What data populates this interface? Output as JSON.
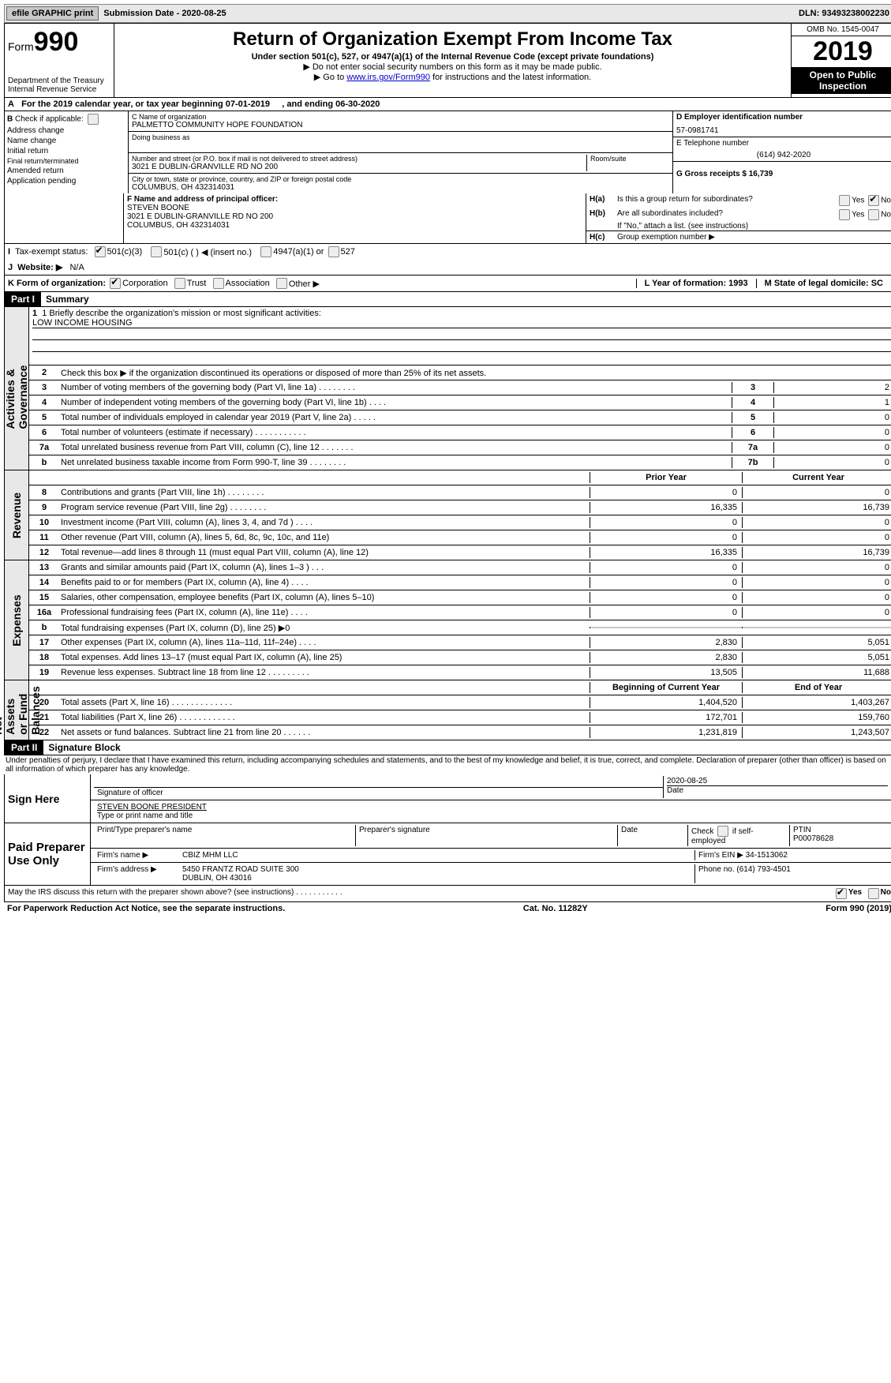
{
  "topbar": {
    "efile": "efile GRAPHIC print",
    "sub_label": "Submission Date - 2020-08-25",
    "dln": "DLN: 93493238002230"
  },
  "header": {
    "form": "Form",
    "form_num": "990",
    "dept1": "Department of the Treasury",
    "dept2": "Internal Revenue Service",
    "title": "Return of Organization Exempt From Income Tax",
    "subtitle": "Under section 501(c), 527, or 4947(a)(1) of the Internal Revenue Code (except private foundations)",
    "note1": "▶ Do not enter social security numbers on this form as it may be made public.",
    "note2_pre": "▶ Go to ",
    "note2_link": "www.irs.gov/Form990",
    "note2_post": " for instructions and the latest information.",
    "omb": "OMB No. 1545-0047",
    "year": "2019",
    "open": "Open to Public Inspection"
  },
  "lineA": {
    "prefix": "A",
    "text": "For the 2019 calendar year, or tax year beginning 07-01-2019",
    "mid": ", and ending 06-30-2020"
  },
  "sectionB": {
    "label": "B",
    "check": "Check if applicable:",
    "items": [
      "Address change",
      "Name change",
      "Initial return",
      "Final return/terminated",
      "Amended return",
      "Application pending"
    ]
  },
  "sectionC": {
    "c_lbl": "C Name of organization",
    "c_val": "PALMETTO COMMUNITY HOPE FOUNDATION",
    "dba_lbl": "Doing business as",
    "addr_lbl": "Number and street (or P.O. box if mail is not delivered to street address)",
    "room_lbl": "Room/suite",
    "addr_val": "3021 E DUBLIN-GRANVILLE RD NO 200",
    "city_lbl": "City or town, state or province, country, and ZIP or foreign postal code",
    "city_val": "COLUMBUS, OH   432314031",
    "f_lbl": "F Name and address of principal officer:",
    "f_name": "STEVEN BOONE",
    "f_addr1": "3021 E DUBLIN-GRANVILLE RD NO 200",
    "f_addr2": "COLUMBUS, OH   432314031"
  },
  "sectionD": {
    "d_lbl": "D Employer identification number",
    "d_val": "57-0981741",
    "e_lbl": "E Telephone number",
    "e_val": "(614) 942-2020",
    "g_lbl": "G Gross receipts $ 16,739"
  },
  "sectionH": {
    "ha_lbl": "Is this a group return for subordinates?",
    "hb_lbl": "Are all subordinates included?",
    "hb_note": "If \"No,\" attach a list. (see instructions)",
    "hc_lbl": "Group exemption number ▶",
    "yes": "Yes",
    "no": "No"
  },
  "rowI": {
    "lbl": "I",
    "text": "Tax-exempt status:",
    "opt1": "501(c)(3)",
    "opt2": "501(c) (   ) ◀ (insert no.)",
    "opt3": "4947(a)(1) or",
    "opt4": "527"
  },
  "rowJ": {
    "lbl": "J",
    "text": "Website: ▶",
    "val": "N/A"
  },
  "rowK": {
    "lbl": "K Form of organization:",
    "opts": [
      "Corporation",
      "Trust",
      "Association",
      "Other ▶"
    ]
  },
  "rowL": {
    "lbl": "L Year of formation: 1993"
  },
  "rowM": {
    "lbl": "M State of legal domicile: SC"
  },
  "part1": {
    "label": "Part I",
    "title": "Summary"
  },
  "summary": {
    "mission_lbl": "1  Briefly describe the organization's mission or most significant activities:",
    "mission_val": "LOW INCOME HOUSING",
    "line2": "Check this box ▶         if the organization discontinued its operations or disposed of more than 25% of its net assets.",
    "governance": [
      {
        "n": "3",
        "d": "Number of voting members of the governing body (Part VI, line 1a)   .     .     .     .     .     .     .     .",
        "rn": "3",
        "v": "2"
      },
      {
        "n": "4",
        "d": "Number of independent voting members of the governing body (Part VI, line 1b)   .     .     .     .",
        "rn": "4",
        "v": "1"
      },
      {
        "n": "5",
        "d": "Total number of individuals employed in calendar year 2019 (Part V, line 2a)   .     .     .     .     .",
        "rn": "5",
        "v": "0"
      },
      {
        "n": "6",
        "d": "Total number of volunteers (estimate if necessary)   .     .     .     .     .     .     .     .     .     .     .",
        "rn": "6",
        "v": "0"
      },
      {
        "n": "7a",
        "d": "Total unrelated business revenue from Part VIII, column (C), line 12   .     .     .     .     .     .     .",
        "rn": "7a",
        "v": "0"
      },
      {
        "n": "b",
        "d": "Net unrelated business taxable income from Form 990-T, line 39   .     .     .     .     .     .     .     .",
        "rn": "7b",
        "v": "0"
      }
    ],
    "header_prior": "Prior Year",
    "header_curr": "Current Year",
    "revenue": [
      {
        "n": "8",
        "d": "Contributions and grants (Part VIII, line 1h)   .     .     .     .     .     .     .     .",
        "p": "0",
        "c": "0"
      },
      {
        "n": "9",
        "d": "Program service revenue (Part VIII, line 2g)   .     .     .     .     .     .     .     .",
        "p": "16,335",
        "c": "16,739"
      },
      {
        "n": "10",
        "d": "Investment income (Part VIII, column (A), lines 3, 4, and 7d )   .     .     .     .",
        "p": "0",
        "c": "0"
      },
      {
        "n": "11",
        "d": "Other revenue (Part VIII, column (A), lines 5, 6d, 8c, 9c, 10c, and 11e)",
        "p": "0",
        "c": "0"
      },
      {
        "n": "12",
        "d": "Total revenue—add lines 8 through 11 (must equal Part VIII, column (A), line 12)",
        "p": "16,335",
        "c": "16,739"
      }
    ],
    "expenses": [
      {
        "n": "13",
        "d": "Grants and similar amounts paid (Part IX, column (A), lines 1–3 )   .     .     .",
        "p": "0",
        "c": "0"
      },
      {
        "n": "14",
        "d": "Benefits paid to or for members (Part IX, column (A), line 4)   .     .     .     .",
        "p": "0",
        "c": "0"
      },
      {
        "n": "15",
        "d": "Salaries, other compensation, employee benefits (Part IX, column (A), lines 5–10)",
        "p": "0",
        "c": "0"
      },
      {
        "n": "16a",
        "d": "Professional fundraising fees (Part IX, column (A), line 11e)   .     .     .     .",
        "p": "0",
        "c": "0"
      },
      {
        "n": "b",
        "d": "Total fundraising expenses (Part IX, column (D), line 25) ▶0",
        "p": "",
        "c": "",
        "shaded": true
      },
      {
        "n": "17",
        "d": "Other expenses (Part IX, column (A), lines 11a–11d, 11f–24e)   .     .     .     .",
        "p": "2,830",
        "c": "5,051"
      },
      {
        "n": "18",
        "d": "Total expenses. Add lines 13–17 (must equal Part IX, column (A), line 25)",
        "p": "2,830",
        "c": "5,051"
      },
      {
        "n": "19",
        "d": "Revenue less expenses. Subtract line 18 from line 12   .     .     .     .     .     .     .     .     .",
        "p": "13,505",
        "c": "11,688"
      }
    ],
    "header_boy": "Beginning of Current Year",
    "header_eoy": "End of Year",
    "assets": [
      {
        "n": "20",
        "d": "Total assets (Part X, line 16)   .     .     .     .     .     .     .     .     .     .     .     .     .",
        "p": "1,404,520",
        "c": "1,403,267"
      },
      {
        "n": "21",
        "d": "Total liabilities (Part X, line 26)   .     .     .     .     .     .     .     .     .     .     .     .",
        "p": "172,701",
        "c": "159,760"
      },
      {
        "n": "22",
        "d": "Net assets or fund balances. Subtract line 21 from line 20   .     .     .     .     .     .",
        "p": "1,231,819",
        "c": "1,243,507"
      }
    ],
    "side_gov": "Activities & Governance",
    "side_rev": "Revenue",
    "side_exp": "Expenses",
    "side_net": "Net Assets or Fund Balances"
  },
  "part2": {
    "label": "Part II",
    "title": "Signature Block",
    "perjury": "Under penalties of perjury, I declare that I have examined this return, including accompanying schedules and statements, and to the best of my knowledge and belief, it is true, correct, and complete. Declaration of preparer (other than officer) is based on all information of which preparer has any knowledge."
  },
  "sign": {
    "here": "Sign Here",
    "sig_lbl": "Signature of officer",
    "date_lbl": "Date",
    "date_val": "2020-08-25",
    "name_val": "STEVEN BOONE  PRESIDENT",
    "name_lbl": "Type or print name and title"
  },
  "paid": {
    "here": "Paid Preparer Use Only",
    "col1": "Print/Type preparer's name",
    "col2": "Preparer's signature",
    "col3": "Date",
    "col4_chk": "Check          if self-employed",
    "col5_lbl": "PTIN",
    "col5_val": "P00078628",
    "firm_lbl": "Firm's name     ▶",
    "firm_val": "CBIZ MHM LLC",
    "ein_lbl": "Firm's EIN ▶",
    "ein_val": "34-1513062",
    "addr_lbl": "Firm's address ▶",
    "addr_val1": "5450 FRANTZ ROAD SUITE 300",
    "addr_val2": "DUBLIN, OH  43016",
    "phone_lbl": "Phone no.",
    "phone_val": "(614) 793-4501"
  },
  "discuss": {
    "text": "May the IRS discuss this return with the preparer shown above? (see instructions)   .     .     .     .     .     .     .     .     .     .     .",
    "yes": "Yes",
    "no": "No"
  },
  "footer": {
    "left": "For Paperwork Reduction Act Notice, see the separate instructions.",
    "mid": "Cat. No. 11282Y",
    "right": "Form 990 (2019)"
  }
}
